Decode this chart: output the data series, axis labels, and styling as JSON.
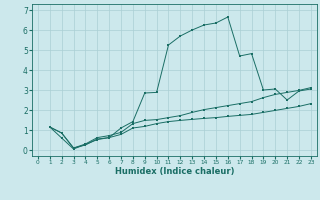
{
  "xlabel": "Humidex (Indice chaleur)",
  "bg_color": "#cce8ec",
  "grid_color": "#aacfd4",
  "line_color": "#1a6e65",
  "xlim": [
    -0.5,
    23.5
  ],
  "ylim": [
    -0.3,
    7.3
  ],
  "yticks": [
    0,
    1,
    2,
    3,
    4,
    5,
    6,
    7
  ],
  "xticks": [
    0,
    1,
    2,
    3,
    4,
    5,
    6,
    7,
    8,
    9,
    10,
    11,
    12,
    13,
    14,
    15,
    16,
    17,
    18,
    19,
    20,
    21,
    22,
    23
  ],
  "line1_x": [
    1,
    2,
    3,
    4,
    5,
    6,
    7,
    8,
    9,
    10,
    11,
    12,
    13,
    14,
    15,
    16,
    17,
    18,
    19,
    20,
    21,
    22,
    23
  ],
  "line1_y": [
    1.15,
    0.85,
    0.1,
    0.25,
    0.55,
    0.62,
    0.78,
    1.1,
    1.18,
    1.32,
    1.42,
    1.48,
    1.53,
    1.58,
    1.62,
    1.68,
    1.73,
    1.78,
    1.88,
    1.98,
    2.08,
    2.18,
    2.32
  ],
  "line2_x": [
    1,
    2,
    3,
    4,
    5,
    6,
    7,
    8,
    9,
    10,
    11,
    12,
    13,
    14,
    15,
    16,
    17,
    18,
    19,
    20,
    21,
    22,
    23
  ],
  "line2_y": [
    1.15,
    0.6,
    0.05,
    0.28,
    0.52,
    0.62,
    1.1,
    1.42,
    2.85,
    2.88,
    5.25,
    5.7,
    6.0,
    6.25,
    6.35,
    6.65,
    4.7,
    4.82,
    3.0,
    3.05,
    2.5,
    2.95,
    3.05
  ],
  "line3_x": [
    1,
    2,
    3,
    4,
    5,
    6,
    7,
    8,
    9,
    10,
    11,
    12,
    13,
    14,
    15,
    16,
    17,
    18,
    19,
    20,
    21,
    22,
    23
  ],
  "line3_y": [
    1.15,
    0.85,
    0.1,
    0.3,
    0.62,
    0.72,
    0.88,
    1.32,
    1.48,
    1.52,
    1.62,
    1.72,
    1.88,
    2.02,
    2.12,
    2.22,
    2.32,
    2.42,
    2.62,
    2.78,
    2.88,
    2.98,
    3.12
  ]
}
